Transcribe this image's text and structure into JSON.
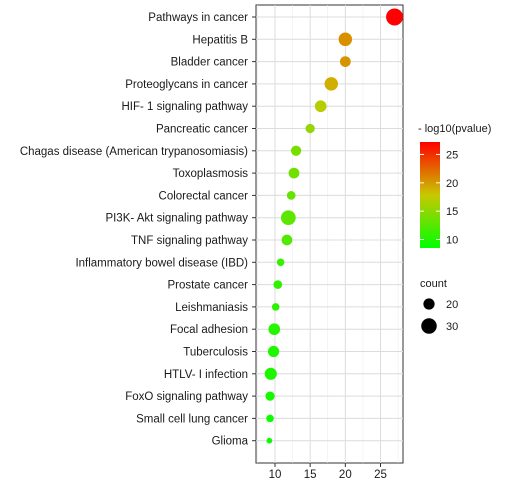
{
  "chart_data": {
    "type": "scatter",
    "xlabel": "",
    "ylabel": "",
    "xlim": [
      7.3,
      28.2
    ],
    "x_ticks": [
      10,
      15,
      20,
      25
    ],
    "grid": true,
    "legend_position": "right",
    "color_scale": {
      "title": "- log10(pvalue)",
      "range": [
        8.5,
        27.2
      ],
      "ticks": [
        10,
        15,
        20,
        25
      ],
      "low_color": "#00ff00",
      "high_color": "#ff0000"
    },
    "size_scale": {
      "title": "count",
      "range": [
        9,
        34
      ],
      "ticks": [
        20,
        30
      ]
    },
    "points": [
      {
        "term": "Pathways in cancer",
        "x": 27,
        "count": 34,
        "pvalue_log": 27.2
      },
      {
        "term": "Hepatitis B",
        "x": 20,
        "count": 25,
        "pvalue_log": 20.5
      },
      {
        "term": "Bladder cancer",
        "x": 20,
        "count": 19,
        "pvalue_log": 20.3
      },
      {
        "term": "Proteoglycans in cancer",
        "x": 18,
        "count": 25,
        "pvalue_log": 19.0
      },
      {
        "term": "HIF- 1 signaling pathway",
        "x": 16.5,
        "count": 21,
        "pvalue_log": 17.0
      },
      {
        "term": "Pancreatic cancer",
        "x": 15,
        "count": 16,
        "pvalue_log": 15.5
      },
      {
        "term": "Chagas disease (American trypanosomiasis)",
        "x": 13,
        "count": 18,
        "pvalue_log": 14.0
      },
      {
        "term": "Toxoplasmosis",
        "x": 12.7,
        "count": 19,
        "pvalue_log": 13.8
      },
      {
        "term": "Colorectal cancer",
        "x": 12.3,
        "count": 15,
        "pvalue_log": 13.2
      },
      {
        "term": "PI3K- Akt signaling pathway",
        "x": 11.9,
        "count": 28,
        "pvalue_log": 12.8
      },
      {
        "term": "TNF signaling pathway",
        "x": 11.7,
        "count": 19,
        "pvalue_log": 12.3
      },
      {
        "term": "Inflammatory bowel disease (IBD)",
        "x": 10.8,
        "count": 13,
        "pvalue_log": 11.0
      },
      {
        "term": "Prostate cancer",
        "x": 10.4,
        "count": 15,
        "pvalue_log": 10.8
      },
      {
        "term": "Leishmaniasis",
        "x": 10.1,
        "count": 13,
        "pvalue_log": 10.5
      },
      {
        "term": "Focal adhesion",
        "x": 9.9,
        "count": 21,
        "pvalue_log": 10.3
      },
      {
        "term": "Tuberculosis",
        "x": 9.8,
        "count": 20,
        "pvalue_log": 10.0
      },
      {
        "term": "HTLV- I infection",
        "x": 9.4,
        "count": 22,
        "pvalue_log": 9.8
      },
      {
        "term": "FoxO signaling pathway",
        "x": 9.3,
        "count": 16,
        "pvalue_log": 9.5
      },
      {
        "term": "Small cell lung cancer",
        "x": 9.3,
        "count": 13,
        "pvalue_log": 9.2
      },
      {
        "term": "Glioma",
        "x": 9.2,
        "count": 10,
        "pvalue_log": 9.0
      }
    ]
  }
}
